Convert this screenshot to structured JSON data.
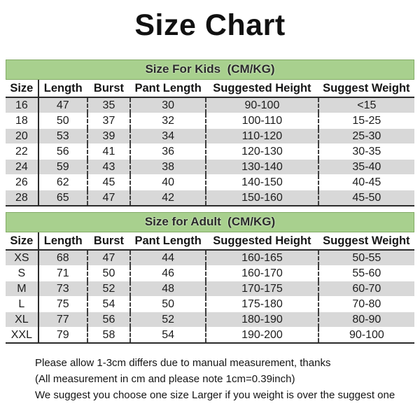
{
  "title": "Size Chart",
  "tables": [
    {
      "section_title": "Size For Kids  (CM/KG)",
      "columns": [
        "Size",
        "Length",
        "Burst",
        "Pant Length",
        "Suggested Height",
        "Suggest Weight"
      ],
      "rows": [
        [
          "16",
          "47",
          "35",
          "30",
          "90-100",
          "<15"
        ],
        [
          "18",
          "50",
          "37",
          "32",
          "100-110",
          "15-25"
        ],
        [
          "20",
          "53",
          "39",
          "34",
          "110-120",
          "25-30"
        ],
        [
          "22",
          "56",
          "41",
          "36",
          "120-130",
          "30-35"
        ],
        [
          "24",
          "59",
          "43",
          "38",
          "130-140",
          "35-40"
        ],
        [
          "26",
          "62",
          "45",
          "40",
          "140-150",
          "40-45"
        ],
        [
          "28",
          "65",
          "47",
          "42",
          "150-160",
          "45-50"
        ]
      ]
    },
    {
      "section_title": "Size for Adult  (CM/KG)",
      "columns": [
        "Size",
        "Length",
        "Burst",
        "Pant Length",
        "Suggested Height",
        "Suggest Weight"
      ],
      "rows": [
        [
          "XS",
          "68",
          "47",
          "44",
          "160-165",
          "50-55"
        ],
        [
          "S",
          "71",
          "50",
          "46",
          "160-170",
          "55-60"
        ],
        [
          "M",
          "73",
          "52",
          "48",
          "170-175",
          "60-70"
        ],
        [
          "L",
          "75",
          "54",
          "50",
          "175-180",
          "70-80"
        ],
        [
          "XL",
          "77",
          "56",
          "52",
          "180-190",
          "80-90"
        ],
        [
          "XXL",
          "79",
          "58",
          "54",
          "190-200",
          "90-100"
        ]
      ]
    }
  ],
  "notes": [
    "Please allow 1-3cm differs due to manual measurement, thanks",
    "(All measurement in cm and please note 1cm=0.39inch)",
    "We suggest you choose one size Larger if you weight is over the suggest one"
  ],
  "chart_data": [
    {
      "type": "table",
      "title": "Size For Kids (CM/KG)",
      "columns": [
        "Size",
        "Length",
        "Burst",
        "Pant Length",
        "Suggested Height",
        "Suggest Weight"
      ],
      "rows": [
        [
          "16",
          "47",
          "35",
          "30",
          "90-100",
          "<15"
        ],
        [
          "18",
          "50",
          "37",
          "32",
          "100-110",
          "15-25"
        ],
        [
          "20",
          "53",
          "39",
          "34",
          "110-120",
          "25-30"
        ],
        [
          "22",
          "56",
          "41",
          "36",
          "120-130",
          "30-35"
        ],
        [
          "24",
          "59",
          "43",
          "38",
          "130-140",
          "35-40"
        ],
        [
          "26",
          "62",
          "45",
          "40",
          "140-150",
          "40-45"
        ],
        [
          "28",
          "65",
          "47",
          "42",
          "150-160",
          "45-50"
        ]
      ]
    },
    {
      "type": "table",
      "title": "Size for Adult (CM/KG)",
      "columns": [
        "Size",
        "Length",
        "Burst",
        "Pant Length",
        "Suggested Height",
        "Suggest Weight"
      ],
      "rows": [
        [
          "XS",
          "68",
          "47",
          "44",
          "160-165",
          "50-55"
        ],
        [
          "S",
          "71",
          "50",
          "46",
          "160-170",
          "55-60"
        ],
        [
          "M",
          "73",
          "52",
          "48",
          "170-175",
          "60-70"
        ],
        [
          "L",
          "75",
          "54",
          "50",
          "175-180",
          "70-80"
        ],
        [
          "XL",
          "77",
          "56",
          "52",
          "180-190",
          "80-90"
        ],
        [
          "XXL",
          "79",
          "58",
          "54",
          "190-200",
          "90-100"
        ]
      ]
    }
  ],
  "colors": {
    "section_header_green": "#a8d08e",
    "stripe_gray": "#d8d8d8",
    "border_dark": "#2b2b2b",
    "text": "#1d1d1d",
    "background": "#ffffff"
  }
}
